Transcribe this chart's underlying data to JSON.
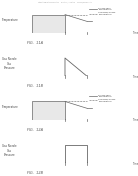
{
  "background_color": "#ffffff",
  "line_color": "#666666",
  "header": "Patent Application Publication    Sheet 17 / Sheet 18    US 2007/0048979 A1",
  "plots": [
    {
      "fig_label": "FIG.  11A",
      "ylabel": "Temperature",
      "type": "temp11a",
      "t1": 0.38,
      "t2": 0.6,
      "legend1": "Reflow Peak\nTemperature",
      "legend2": "Cooldown Phase\nTemperature"
    },
    {
      "fig_label": "FIG.  11B",
      "ylabel": "Gas Nozzle\nGas\nPressure",
      "type": "gas11b",
      "t1": 0.38,
      "t2": 0.6
    },
    {
      "fig_label": "FIG.  12A",
      "ylabel": "Temperature",
      "type": "temp12a",
      "t1": 0.38,
      "t2": 0.6,
      "legend1": "Reflow Peak\nTemperature",
      "legend2": "Cooldown Phase\nTemperature"
    },
    {
      "fig_label": "FIG.  12B",
      "ylabel": "Gas Nozzle\nGas\nPressure",
      "type": "gas12b",
      "t1": 0.38,
      "t2": 0.6
    }
  ]
}
